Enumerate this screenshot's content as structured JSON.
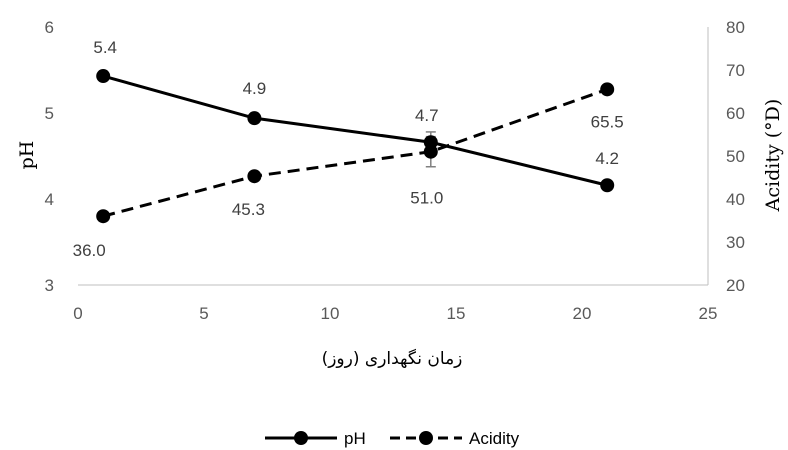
{
  "chart_data": {
    "type": "line",
    "x": [
      1,
      7,
      14,
      21
    ],
    "xlim": [
      0,
      25
    ],
    "x_ticks": [
      0,
      5,
      10,
      15,
      20,
      25
    ],
    "xlabel": "زمان نگهداری (روز)",
    "ylabel": "pH",
    "ylim": [
      3,
      6
    ],
    "y_ticks": [
      3,
      4,
      5,
      6
    ],
    "y2label": "Acidity (°D)",
    "y2lim": [
      20,
      80
    ],
    "y2_ticks": [
      20,
      30,
      40,
      50,
      60,
      70,
      80
    ],
    "grid": false,
    "legend_position": "bottom",
    "series": [
      {
        "name": "pH",
        "axis": "left",
        "style": "solid",
        "values": [
          5.43,
          4.94,
          4.66,
          4.16
        ],
        "labels": [
          "5.4",
          "4.9",
          "4.7",
          "4.2"
        ],
        "error": [
          0,
          0,
          0.12,
          0
        ]
      },
      {
        "name": "Acidity",
        "axis": "right",
        "style": "dashed",
        "values": [
          36.0,
          45.3,
          51.0,
          65.5
        ],
        "labels": [
          "36.0",
          "45.3",
          "51.0",
          "65.5"
        ],
        "error": [
          1.0,
          0,
          3.5,
          0
        ]
      }
    ],
    "colors": {
      "line": "#000000",
      "axis": "#bfbfbf",
      "error_bar": "#808080"
    }
  }
}
